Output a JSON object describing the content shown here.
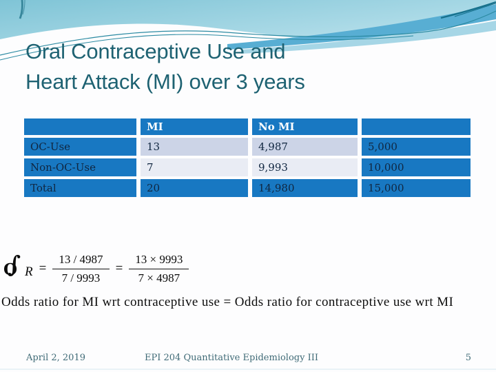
{
  "slide": {
    "title_line1": "Oral Contraceptive Use and",
    "title_line2": "Heart Attack (MI) over 3 years"
  },
  "table": {
    "columns": [
      "",
      "MI",
      "No MI",
      ""
    ],
    "rows": [
      {
        "label": "OC-Use",
        "mi": "13",
        "no_mi": "4,987",
        "total": "5,000",
        "band": "shaded-dark"
      },
      {
        "label": "Non-OC-Use",
        "mi": "7",
        "no_mi": "9,993",
        "total": "10,000",
        "band": "shaded-light"
      },
      {
        "label": "Total",
        "mi": "20",
        "no_mi": "14,980",
        "total": "15,000",
        "band": "solid"
      }
    ]
  },
  "formula": {
    "o_glyph": "O",
    "stroke_glyph": "∫",
    "variable": "R",
    "equals": "=",
    "frac1": {
      "num": "13 / 4987",
      "den": "7 / 9993"
    },
    "frac2": {
      "num": "13 × 9993",
      "den": "7 × 4987"
    }
  },
  "statement": "Odds ratio for MI wrt contraceptive use = Odds ratio for contraceptive use wrt MI",
  "footer": {
    "date": "April 2, 2019",
    "course": "EPI 204 Quantitative Epidemiology III",
    "page": "5"
  },
  "colors": {
    "table_blue": "#1878c2",
    "band_dark": "#ccd4e7",
    "band_light": "#e9ecf4",
    "cell_text": "#102640",
    "title_teal": "#1e6272",
    "footer_teal": "#3f6a76",
    "wave_line_teal": "#2b8aa2",
    "wave_band_blue": "#58aed3",
    "wave_band_cyan": "#a6d6e6"
  }
}
